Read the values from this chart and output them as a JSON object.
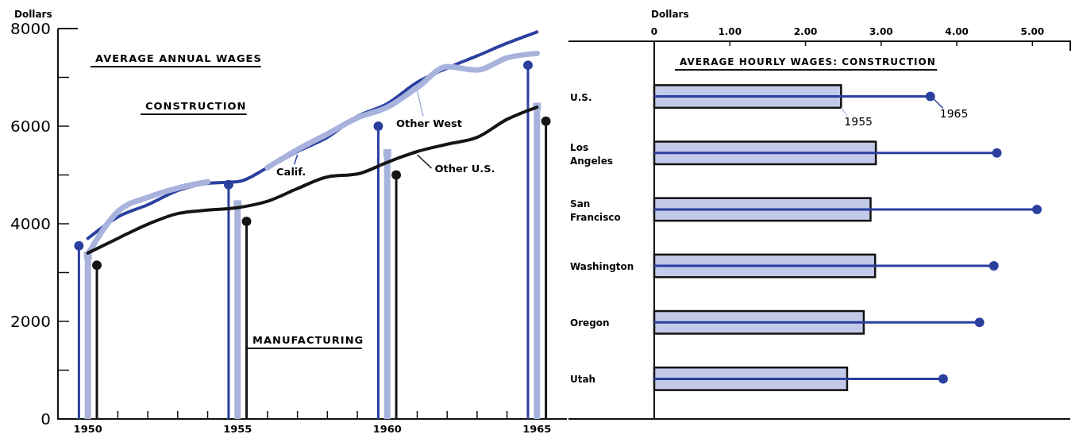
{
  "chart_data": [
    {
      "type": "line",
      "title": "AVERAGE ANNUAL WAGES",
      "ylabel": "Dollars",
      "annotations": [
        "CONSTRUCTION",
        "MANUFACTURING"
      ],
      "x": [
        1950,
        1951,
        1952,
        1953,
        1954,
        1955,
        1956,
        1957,
        1958,
        1959,
        1960,
        1961,
        1962,
        1963,
        1964,
        1965
      ],
      "xlim": [
        1949,
        1966
      ],
      "xticks": [
        1950,
        {
          "value": 1951,
          "label": null
        },
        {
          "value": 1952,
          "label": null
        },
        {
          "value": 1953,
          "label": null
        },
        {
          "value": 1954,
          "label": null
        },
        1955,
        {
          "value": 1956,
          "label": null
        },
        {
          "value": 1957,
          "label": null
        },
        {
          "value": 1958,
          "label": null
        },
        {
          "value": 1959,
          "label": null
        },
        1960,
        {
          "value": 1961,
          "label": null
        },
        {
          "value": 1962,
          "label": null
        },
        {
          "value": 1963,
          "label": null
        },
        {
          "value": 1964,
          "label": null
        },
        1965
      ],
      "ylim": [
        0,
        8000
      ],
      "yticks": [
        0,
        {
          "value": 1000,
          "label": null
        },
        2000,
        {
          "value": 3000,
          "label": null
        },
        4000,
        {
          "value": 5000,
          "label": null
        },
        6000,
        {
          "value": 7000,
          "label": null
        },
        8000
      ],
      "grid": false,
      "series": [
        {
          "name": "Calif.",
          "color": "#2b3f9f",
          "values": [
            3700,
            4140,
            4390,
            4680,
            4830,
            4860,
            5150,
            5480,
            5770,
            6200,
            6460,
            6900,
            7190,
            7440,
            7700,
            7930
          ]
        },
        {
          "name": "Other West",
          "color": "#a8b3dd",
          "values": [
            3380,
            4250,
            4540,
            4730,
            4860,
            null,
            5150,
            5520,
            5840,
            6170,
            6390,
            6790,
            7220,
            7150,
            7400,
            7490
          ]
        },
        {
          "name": "Other U.S.",
          "color": "#151515",
          "values": [
            3400,
            3700,
            3990,
            4210,
            4280,
            4330,
            4460,
            4720,
            4960,
            5020,
            5260,
            5480,
            5630,
            5770,
            6140,
            6390
          ]
        },
        {
          "type": "lollipop",
          "x": [
            1949.7,
            1954.7,
            1959.7,
            1964.7
          ],
          "color": "#2b3f9f",
          "marker": "circle",
          "values": [
            3550,
            4800,
            6000,
            7250
          ]
        },
        {
          "type": "lollipop",
          "x": [
            1950,
            1955,
            1960,
            1965
          ],
          "color": "#a8b3dd",
          "marker": "square",
          "values": [
            3350,
            4400,
            5450,
            6400
          ]
        },
        {
          "type": "lollipop",
          "x": [
            1950.3,
            1955.3,
            1960.3,
            1965.3
          ],
          "color": "#151515",
          "marker": "circle",
          "values": [
            3150,
            4050,
            5000,
            6100
          ]
        }
      ]
    },
    {
      "type": "bar",
      "orientation": "horizontal",
      "title": "AVERAGE HOURLY WAGES: CONSTRUCTION",
      "xlabel": "Dollars",
      "categories": [
        "U.S.",
        "Los Angeles",
        "San Francisco",
        "Washington",
        "Oregon",
        "Utah"
      ],
      "xlim": [
        0,
        5.5
      ],
      "xticks": [
        0,
        {
          "value": 1,
          "label": "1.00"
        },
        {
          "value": 2,
          "label": "2.00"
        },
        {
          "value": 3,
          "label": "3.00"
        },
        {
          "value": 4,
          "label": "4.00"
        },
        {
          "value": 5,
          "label": "5.00"
        }
      ],
      "grid": false,
      "legend": "top",
      "series": [
        {
          "name": "1955",
          "color": "#c3c9e8",
          "values": [
            2.47,
            2.93,
            2.86,
            2.92,
            2.77,
            2.55
          ]
        },
        {
          "name": "1965",
          "type": "lollipop",
          "color": "#2b3f9f",
          "marker": "circle",
          "values": [
            3.65,
            4.53,
            5.06,
            4.49,
            4.3,
            3.82
          ]
        }
      ]
    }
  ]
}
